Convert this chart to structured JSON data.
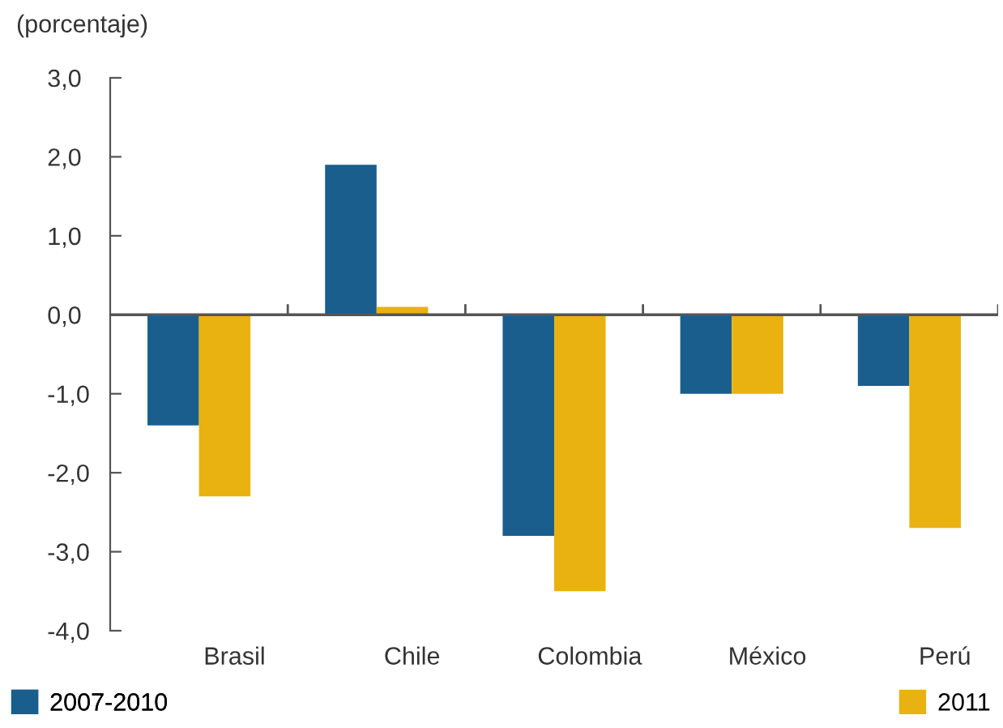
{
  "chart_data": {
    "type": "bar",
    "ylabel": "(porcentaje)",
    "categories": [
      "Brasil",
      "Chile",
      "Colombia",
      "México",
      "Perú"
    ],
    "series": [
      {
        "name": "2007-2010",
        "color": "#1a5e8e",
        "values": [
          -1.4,
          1.9,
          -2.8,
          -1.0,
          -0.9
        ]
      },
      {
        "name": "2011",
        "color": "#e9b210",
        "values": [
          -2.3,
          0.1,
          -3.5,
          -1.0,
          -2.7
        ]
      }
    ],
    "ylim": [
      -4.0,
      3.0
    ],
    "yticks": [
      {
        "value": -4.0,
        "label": "-4,0"
      },
      {
        "value": -3.0,
        "label": "-3,0"
      },
      {
        "value": -2.0,
        "label": "-2,0"
      },
      {
        "value": -1.0,
        "label": "-1,0"
      },
      {
        "value": 0.0,
        "label": "0,0"
      },
      {
        "value": 1.0,
        "label": "1,0"
      },
      {
        "value": 2.0,
        "label": "2,0"
      },
      {
        "value": 3.0,
        "label": "3,0"
      }
    ],
    "legend": "bottom"
  }
}
